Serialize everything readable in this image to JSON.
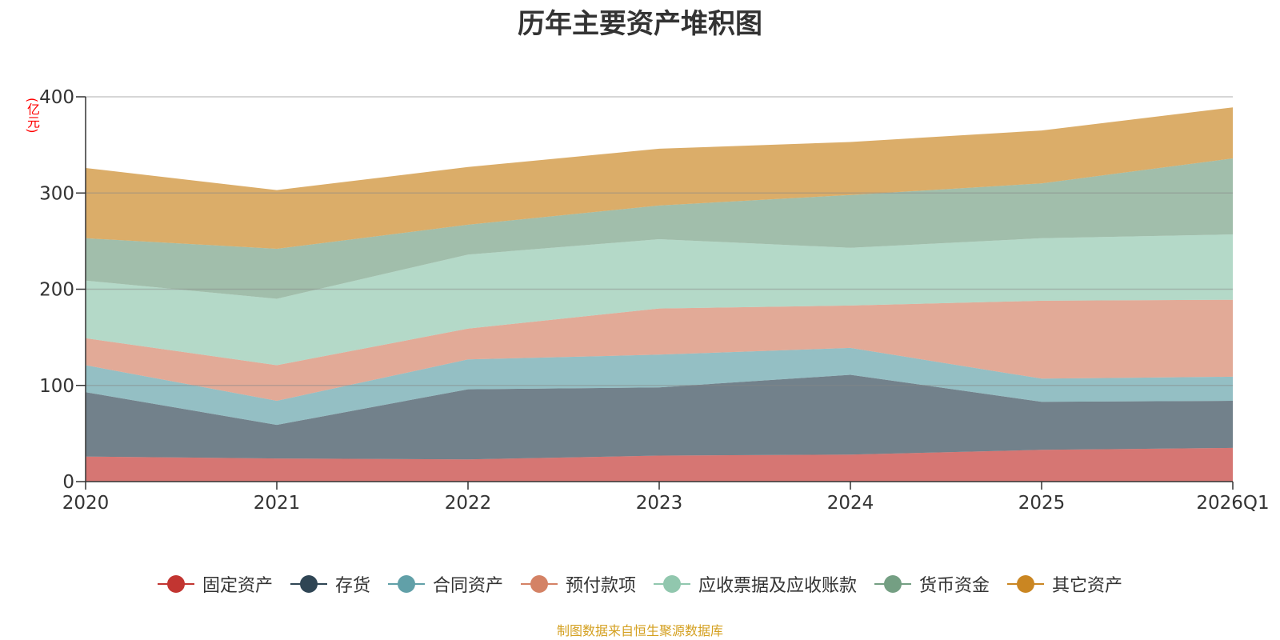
{
  "chart_data": {
    "type": "area",
    "stacked": true,
    "title": "历年主要资产堆积图",
    "unit_label": "(亿元)",
    "categories": [
      "2020",
      "2021",
      "2022",
      "2023",
      "2024",
      "2025",
      "2026Q1"
    ],
    "ylim": [
      0,
      400
    ],
    "yticks": [
      0,
      100,
      200,
      300,
      400
    ],
    "grid": true,
    "legend_position": "bottom",
    "series": [
      {
        "name": "固定资产",
        "color": "#c23531",
        "values": [
          26,
          24,
          23,
          27,
          28,
          33,
          35
        ]
      },
      {
        "name": "存货",
        "color": "#2f4554",
        "values": [
          67,
          35,
          73,
          71,
          83,
          50,
          49
        ]
      },
      {
        "name": "合同资产",
        "color": "#61a0a8",
        "values": [
          28,
          25,
          31,
          34,
          28,
          24,
          25
        ]
      },
      {
        "name": "预付款项",
        "color": "#d48265",
        "values": [
          28,
          37,
          32,
          48,
          44,
          81,
          80
        ]
      },
      {
        "name": "应收票据及应收账款",
        "color": "#91c7ae",
        "values": [
          60,
          69,
          77,
          72,
          60,
          65,
          68
        ]
      },
      {
        "name": "货币资金",
        "color": "#749f83",
        "values": [
          44,
          52,
          31,
          35,
          55,
          57,
          79
        ]
      },
      {
        "name": "其它资产",
        "color": "#ca8622",
        "values": [
          73,
          61,
          60,
          59,
          55,
          55,
          53
        ]
      }
    ]
  },
  "source_note": "制图数据来自恒生聚源数据库"
}
